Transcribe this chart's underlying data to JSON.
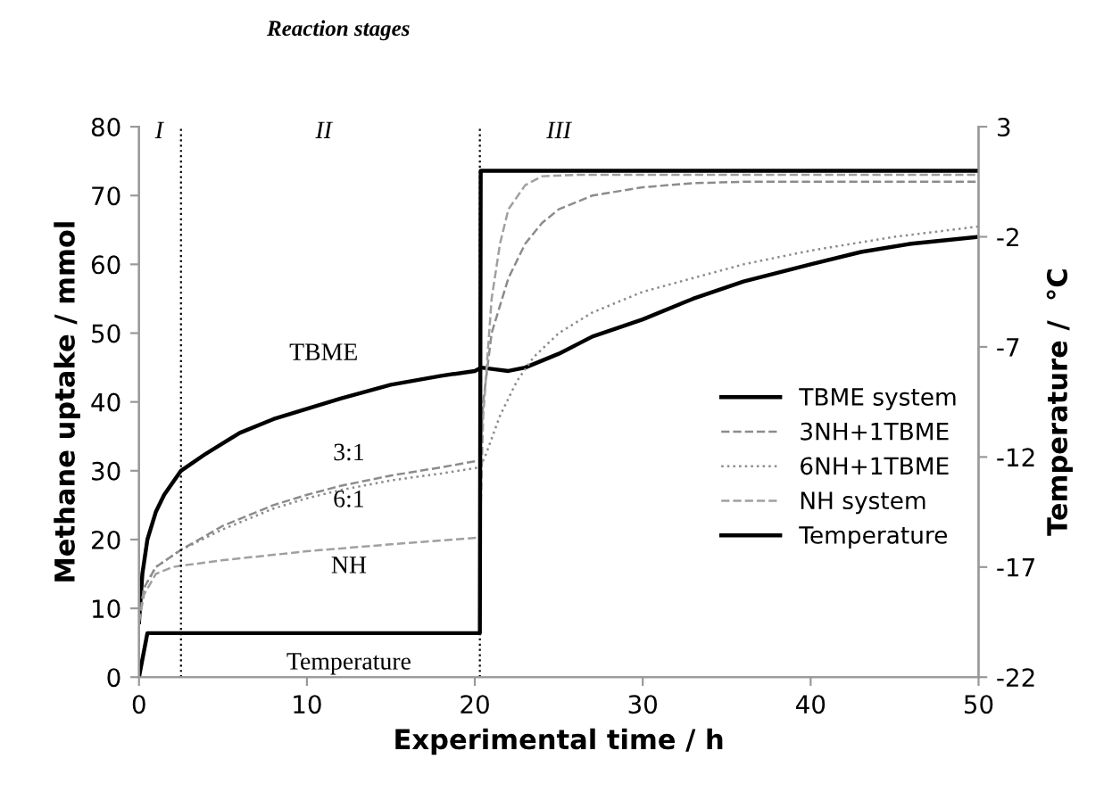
{
  "chart_data": {
    "type": "line",
    "xlabel": "Experimental time / h",
    "ylabel": "Methane uptake / mmol",
    "y2label": "Temperature /  °C",
    "xlim": [
      0,
      50
    ],
    "xticks": [
      0,
      10,
      20,
      30,
      40,
      50
    ],
    "ylim": [
      0,
      80
    ],
    "yticks": [
      0,
      10,
      20,
      30,
      40,
      50,
      60,
      70,
      80
    ],
    "y2lim": [
      -22,
      3
    ],
    "y2ticks": [
      -22,
      -17,
      -12,
      -7,
      -2,
      3
    ],
    "grid": false,
    "legend": "right",
    "marker": "none",
    "series": [
      {
        "name": "TBME system",
        "color": "#000000",
        "line_style": "solid",
        "x": [
          0,
          0.2,
          0.5,
          1,
          1.5,
          2.5,
          4,
          6,
          8,
          10,
          12,
          15,
          18,
          20,
          20.4,
          21,
          22,
          23,
          25,
          27,
          30,
          33,
          36,
          40,
          43,
          46,
          50
        ],
        "values": [
          8,
          15,
          20,
          24,
          26.5,
          30,
          32.5,
          35.5,
          37.5,
          39,
          40.5,
          42.5,
          43.8,
          44.5,
          45,
          44.8,
          44.5,
          45,
          47,
          49.5,
          52,
          55,
          57.5,
          60,
          61.8,
          63,
          64
        ]
      },
      {
        "name": "3NH+1TBME",
        "color": "#8c8c8c",
        "line_style": "dashed",
        "x": [
          0,
          0.3,
          1,
          2.5,
          5,
          8,
          10,
          12,
          15,
          18,
          20.3,
          20.5,
          21,
          22,
          23,
          24,
          25,
          27,
          30,
          33,
          36,
          40,
          45,
          50
        ],
        "values": [
          8,
          13,
          16,
          18.5,
          22,
          25,
          26.5,
          27.8,
          29.3,
          30.5,
          31.5,
          40,
          50,
          58,
          63,
          66,
          68,
          70,
          71.2,
          71.8,
          72,
          72,
          72,
          72
        ]
      },
      {
        "name": "6NH+1TBME",
        "color": "#8c8c8c",
        "line_style": "dotted",
        "x": [
          0,
          0.3,
          1,
          2.5,
          5,
          8,
          10,
          12,
          15,
          18,
          20.3,
          20.6,
          21.5,
          22.5,
          23.5,
          25,
          27,
          30,
          33,
          36,
          40,
          45,
          50
        ],
        "values": [
          8,
          13,
          16,
          18.5,
          21.5,
          24.5,
          26,
          27.2,
          28.6,
          29.6,
          30.5,
          32,
          38,
          43,
          46.5,
          50,
          53,
          56,
          58,
          60,
          62,
          64,
          65.5
        ]
      },
      {
        "name": "NH system",
        "color": "#a0a0a0",
        "line_style": "dashed",
        "x": [
          0,
          0.3,
          1,
          2,
          2.5,
          5,
          10,
          15,
          20.3,
          20.5,
          21,
          21.5,
          22,
          23,
          24,
          26,
          30,
          40,
          50
        ],
        "values": [
          8,
          12,
          15,
          16,
          16.2,
          17,
          18.3,
          19.3,
          20.3,
          38,
          55,
          63,
          68,
          71.5,
          72.8,
          73,
          73,
          73,
          73
        ]
      },
      {
        "name": "Temperature",
        "color": "#000000",
        "line_style": "solid",
        "axis": "y2",
        "x": [
          0,
          0.5,
          2,
          5,
          8,
          11,
          14,
          17,
          20.3,
          20.35,
          22,
          25,
          30,
          35,
          40,
          45,
          50
        ],
        "values": [
          -22,
          -20,
          -20,
          -20,
          -20,
          -20,
          -20,
          -20,
          -20,
          1,
          1,
          1,
          1,
          1,
          1,
          1,
          1
        ]
      }
    ],
    "ref_lines": [
      {
        "axis": "x",
        "value": 2.5,
        "line_style": "dotted",
        "color": "#000000"
      },
      {
        "axis": "x",
        "value": 20.3,
        "line_style": "dotted",
        "color": "#000000"
      }
    ],
    "annotations": [
      "Reaction stages",
      "I",
      "II",
      "III",
      "TBME",
      "3:1",
      "6:1",
      "NH",
      "Temperature"
    ]
  }
}
